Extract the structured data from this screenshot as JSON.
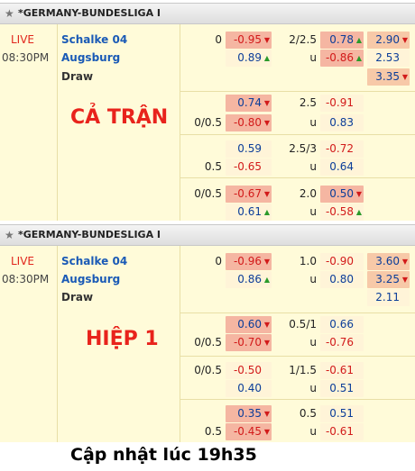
{
  "section1": {
    "league": "*GERMANY-BUNDESLIGA I",
    "status": "LIVE",
    "time": "08:30PM",
    "home": "Schalke 04",
    "away": "Augsburg",
    "draw": "Draw",
    "label": "CẢ TRẬN",
    "rows": [
      {
        "h1": "0",
        "a": "-0.95",
        "h2": "2/2.5",
        "b": "0.78",
        "c": "2.90"
      },
      {
        "h1": "",
        "a": "0.89",
        "h2": "u",
        "b": "-0.86",
        "c": "2.53"
      },
      {
        "c": "3.35"
      },
      {
        "h1": "",
        "a": "0.74",
        "h2": "2.5",
        "b": "-0.91"
      },
      {
        "h1": "0/0.5",
        "a": "-0.80",
        "h2": "u",
        "b": "0.83"
      },
      {
        "h1": "",
        "a": "0.59",
        "h2": "2.5/3",
        "b": "-0.72"
      },
      {
        "h1": "0.5",
        "a": "-0.65",
        "h2": "u",
        "b": "0.64"
      },
      {
        "h1": "0/0.5",
        "a": "-0.67",
        "h2": "2.0",
        "b": "0.50"
      },
      {
        "h1": "",
        "a": "0.61",
        "h2": "u",
        "b": "-0.58"
      }
    ]
  },
  "section2": {
    "league": "*GERMANY-BUNDESLIGA I",
    "status": "LIVE",
    "time": "08:30PM",
    "home": "Schalke 04",
    "away": "Augsburg",
    "draw": "Draw",
    "label": "HIỆP 1",
    "rows": [
      {
        "h1": "0",
        "a": "-0.96",
        "h2": "1.0",
        "b": "-0.90",
        "c": "3.60"
      },
      {
        "h1": "",
        "a": "0.86",
        "h2": "u",
        "b": "0.80",
        "c": "3.25"
      },
      {
        "c": "2.11"
      },
      {
        "h1": "",
        "a": "0.60",
        "h2": "0.5/1",
        "b": "0.66"
      },
      {
        "h1": "0/0.5",
        "a": "-0.70",
        "h2": "u",
        "b": "-0.76"
      },
      {
        "h1": "0/0.5",
        "a": "-0.50",
        "h2": "1/1.5",
        "b": "-0.61"
      },
      {
        "h1": "",
        "a": "0.40",
        "h2": "u",
        "b": "0.51"
      },
      {
        "h1": "",
        "a": "0.35",
        "h2": "0.5",
        "b": "0.51"
      },
      {
        "h1": "0.5",
        "a": "-0.45",
        "h2": "u",
        "b": "-0.61"
      }
    ]
  },
  "footer": "Cập nhật lúc 19h35"
}
